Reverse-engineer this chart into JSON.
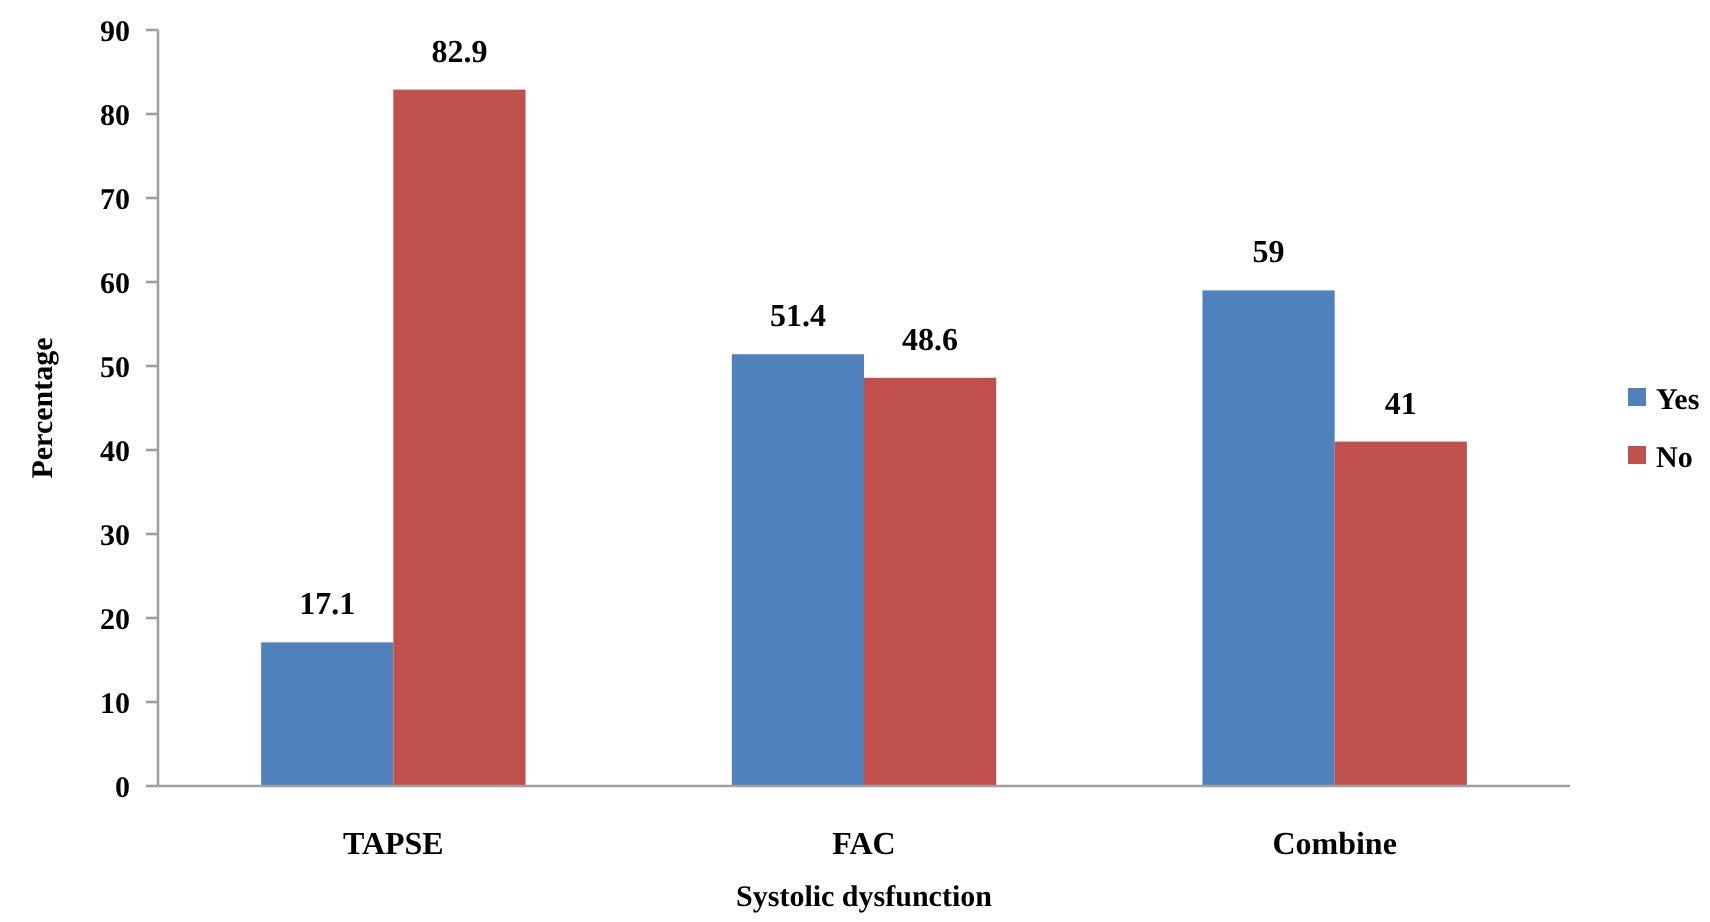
{
  "chart_data": {
    "type": "bar",
    "xlabel": "Systolic dysfunction",
    "ylabel": "Percentage",
    "categories": [
      "TAPSE",
      "FAC",
      "Combine"
    ],
    "series": [
      {
        "name": "Yes",
        "color": "#4f81bd",
        "values": [
          17.1,
          51.4,
          59
        ]
      },
      {
        "name": "No",
        "color": "#c0504d",
        "values": [
          82.9,
          48.6,
          41
        ]
      }
    ],
    "ylim": [
      0,
      90
    ],
    "yticks": [
      0,
      10,
      20,
      30,
      40,
      50,
      60,
      70,
      80,
      90
    ],
    "data_labels": true,
    "legend": "right"
  }
}
